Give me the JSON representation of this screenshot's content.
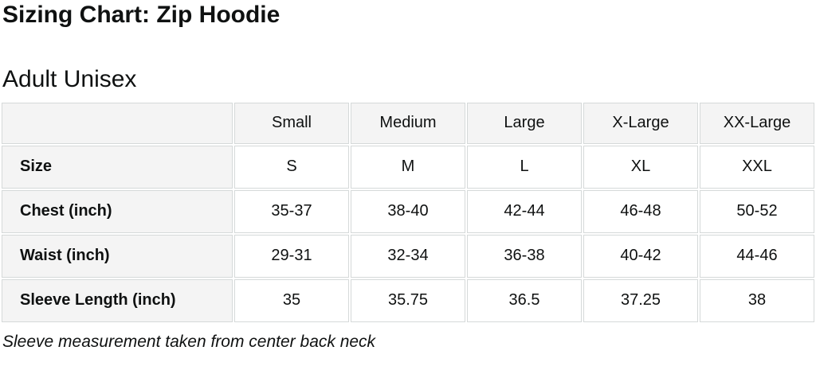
{
  "colors": {
    "header_bg": "#f4f4f4",
    "label_bg": "#f4f4f4",
    "cell_bg": "#ffffff",
    "border": "#d5d9d9",
    "text": "#0f1111"
  },
  "page": {
    "title": "Sizing Chart: Zip Hoodie",
    "subtitle": "Adult Unisex",
    "footnote": "Sleeve measurement taken from center back neck"
  },
  "chart_data": {
    "type": "table",
    "title": "Sizing Chart: Zip Hoodie",
    "subtitle": "Adult Unisex",
    "column_headers": [
      "",
      "Small",
      "Medium",
      "Large",
      "X-Large",
      "XX-Large"
    ],
    "rows": [
      {
        "label": "Size",
        "values": [
          "S",
          "M",
          "L",
          "XL",
          "XXL"
        ]
      },
      {
        "label": "Chest (inch)",
        "values": [
          "35-37",
          "38-40",
          "42-44",
          "46-48",
          "50-52"
        ]
      },
      {
        "label": "Waist (inch)",
        "values": [
          "29-31",
          "32-34",
          "36-38",
          "40-42",
          "44-46"
        ]
      },
      {
        "label": "Sleeve Length (inch)",
        "values": [
          "35",
          "35.75",
          "36.5",
          "37.25",
          "38"
        ]
      }
    ],
    "footnote": "Sleeve measurement taken from center back neck"
  }
}
